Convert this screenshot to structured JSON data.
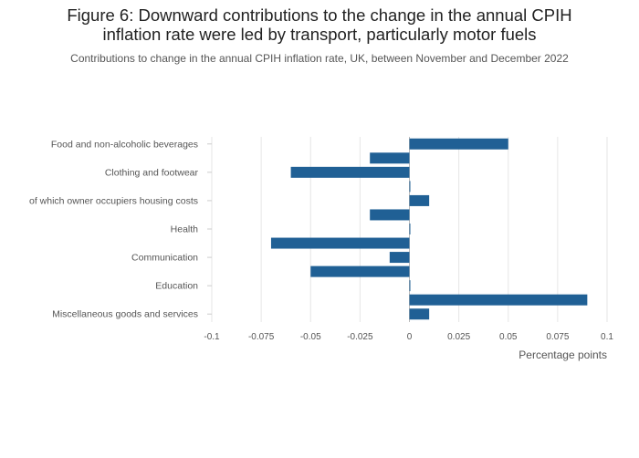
{
  "page": {
    "title_line1": "Figure 6: Downward contributions to the change in the annual CPIH",
    "title_line2": "inflation rate were led by transport, particularly motor fuels",
    "subtitle": "Contributions to change in the annual CPIH inflation rate, UK, between November and December 2022"
  },
  "chart_data": {
    "type": "bar",
    "orientation": "horizontal",
    "title": "Figure 6: Downward contributions to the change in the annual CPIH inflation rate were led by transport, particularly motor fuels",
    "subtitle": "Contributions to change in the annual CPIH inflation rate, UK, between November and December 2022",
    "xlabel": "Percentage points",
    "ylabel": "",
    "xlim": [
      -0.1,
      0.1
    ],
    "xticks": [
      -0.1,
      -0.075,
      -0.05,
      -0.025,
      0,
      0.025,
      0.05,
      0.075,
      0.1
    ],
    "xtick_labels": [
      "-0.1",
      "-0.075",
      "-0.05",
      "-0.025",
      "0",
      "0.025",
      "0.05",
      "0.075",
      "0.1"
    ],
    "grid": true,
    "bar_color": "#206095",
    "categories": [
      "Food and non-alcoholic beverages",
      "",
      "Clothing and footwear",
      "",
      "of which owner occupiers housing costs",
      "",
      "Health",
      "",
      "Communication",
      "",
      "Education",
      "",
      "Miscellaneous goods and services"
    ],
    "values": [
      0.05,
      -0.02,
      -0.06,
      0,
      0.01,
      -0.02,
      0,
      -0.07,
      -0.01,
      -0.05,
      0,
      0.09,
      0.01
    ]
  }
}
